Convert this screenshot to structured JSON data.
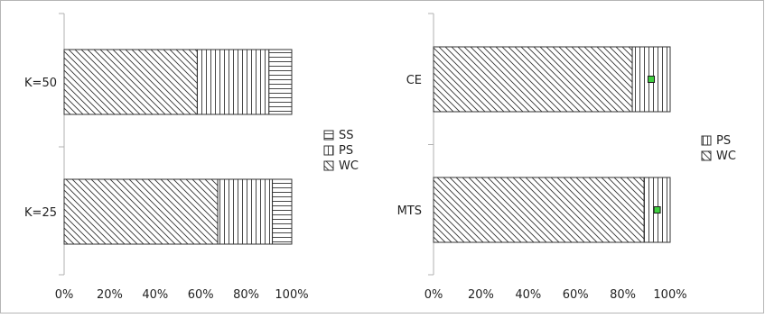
{
  "chart_data": [
    {
      "type": "bar",
      "orientation": "horizontal",
      "stacked": true,
      "percent": true,
      "categories": [
        "K=50",
        "K=25"
      ],
      "series": [
        {
          "name": "WC",
          "values": [
            58.5,
            67.5
          ],
          "pattern": "diagonal"
        },
        {
          "name": "PS",
          "values": [
            31.5,
            24
          ],
          "pattern": "vertical"
        },
        {
          "name": "SS",
          "values": [
            10,
            8.5
          ],
          "pattern": "horizontal"
        }
      ],
      "legend_order": [
        "SS",
        "PS",
        "WC"
      ],
      "xticks": [
        "0%",
        "20%",
        "40%",
        "60%",
        "80%",
        "100%"
      ],
      "xlim": [
        0,
        100
      ],
      "legend_position": "right",
      "grid": false
    },
    {
      "type": "bar",
      "orientation": "horizontal",
      "stacked": true,
      "percent": true,
      "categories": [
        "CE",
        "MTS"
      ],
      "series": [
        {
          "name": "WC",
          "values": [
            84,
            89
          ],
          "pattern": "diagonal"
        },
        {
          "name": "PS",
          "values": [
            16,
            11
          ],
          "pattern": "vertical"
        }
      ],
      "markers": [
        {
          "category": "CE",
          "value": 92,
          "color": "#3fcf3f"
        },
        {
          "category": "MTS",
          "value": 94.5,
          "color": "#3fcf3f"
        }
      ],
      "legend_order": [
        "PS",
        "WC"
      ],
      "xticks": [
        "0%",
        "20%",
        "40%",
        "60%",
        "80%",
        "100%"
      ],
      "xlim": [
        0,
        100
      ],
      "legend_position": "right",
      "grid": false
    }
  ]
}
